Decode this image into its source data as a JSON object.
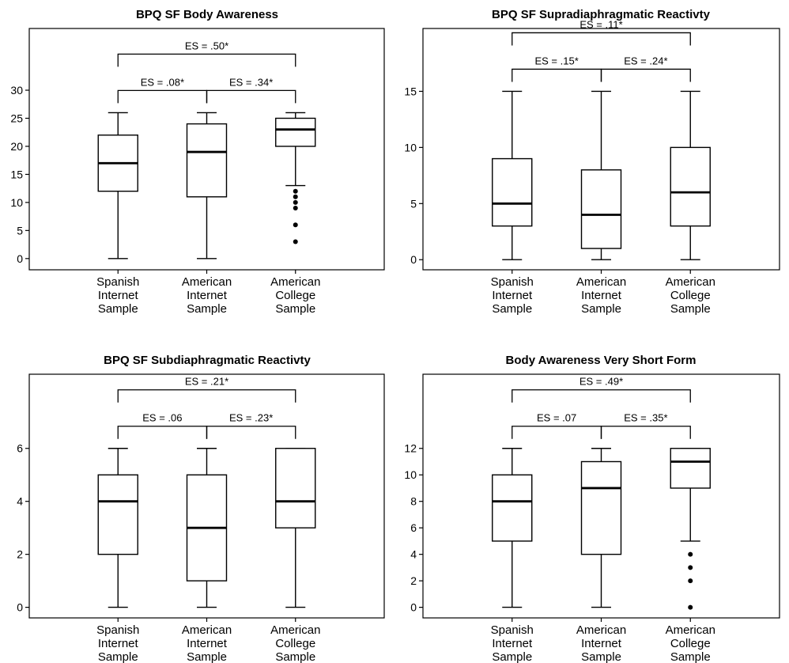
{
  "chart_data": [
    {
      "type": "boxplot",
      "title": "BPQ SF Body Awareness",
      "categories": [
        "Spanish\nInternet\nSample",
        "American\nInternet\nSample",
        "American\nCollege\nSample"
      ],
      "yticks": [
        0,
        5,
        10,
        15,
        20,
        25,
        30
      ],
      "ylim": [
        -2,
        41
      ],
      "boxes": [
        {
          "min": 0,
          "q1": 12,
          "median": 17,
          "q3": 22,
          "max": 26,
          "outliers": []
        },
        {
          "min": 0,
          "q1": 11,
          "median": 19,
          "q3": 24,
          "max": 26,
          "outliers": []
        },
        {
          "min": 13,
          "q1": 20,
          "median": 23,
          "q3": 25,
          "max": 26,
          "outliers": [
            3,
            6,
            9,
            10,
            11,
            12
          ]
        }
      ],
      "brackets": [
        {
          "from": 0,
          "to": 1,
          "level": 1,
          "label": "ES = .08*"
        },
        {
          "from": 1,
          "to": 2,
          "level": 1,
          "label": "ES = .34*"
        },
        {
          "from": 0,
          "to": 2,
          "level": 2,
          "label": "ES = .50*"
        }
      ]
    },
    {
      "type": "boxplot",
      "title": "BPQ SF Supradiaphragmatic Reactivty",
      "categories": [
        "Spanish\nInternet\nSample",
        "American\nInternet\nSample",
        "American\nCollege\nSample"
      ],
      "yticks": [
        0,
        5,
        10,
        15
      ],
      "ylim": [
        -0.9,
        20.6
      ],
      "boxes": [
        {
          "min": 0,
          "q1": 3,
          "median": 5,
          "q3": 9,
          "max": 15,
          "outliers": []
        },
        {
          "min": 0,
          "q1": 1,
          "median": 4,
          "q3": 8,
          "max": 15,
          "outliers": []
        },
        {
          "min": 0,
          "q1": 3,
          "median": 6,
          "q3": 10,
          "max": 15,
          "outliers": []
        }
      ],
      "brackets": [
        {
          "from": 0,
          "to": 1,
          "level": 1,
          "label": "ES = .15*"
        },
        {
          "from": 1,
          "to": 2,
          "level": 1,
          "label": "ES = .24*"
        },
        {
          "from": 0,
          "to": 2,
          "level": 2,
          "label": "ES = .11*"
        }
      ]
    },
    {
      "type": "boxplot",
      "title": "BPQ SF Subdiaphragmatic Reactivty",
      "categories": [
        "Spanish\nInternet\nSample",
        "American\nInternet\nSample",
        "American\nCollege\nSample"
      ],
      "yticks": [
        0,
        2,
        4,
        6
      ],
      "ylim": [
        -0.4,
        8.8
      ],
      "boxes": [
        {
          "min": 0,
          "q1": 2,
          "median": 4,
          "q3": 5,
          "max": 6,
          "outliers": []
        },
        {
          "min": 0,
          "q1": 1,
          "median": 3,
          "q3": 5,
          "max": 6,
          "outliers": []
        },
        {
          "min": 0,
          "q1": 3,
          "median": 4,
          "q3": 6,
          "max": 6,
          "outliers": []
        }
      ],
      "brackets": [
        {
          "from": 0,
          "to": 1,
          "level": 1,
          "label": "ES = .06"
        },
        {
          "from": 1,
          "to": 2,
          "level": 1,
          "label": "ES = .23*"
        },
        {
          "from": 0,
          "to": 2,
          "level": 2,
          "label": "ES = .21*"
        }
      ]
    },
    {
      "type": "boxplot",
      "title": "Body Awareness Very Short Form",
      "categories": [
        "Spanish\nInternet\nSample",
        "American\nInternet\nSample",
        "American\nCollege\nSample"
      ],
      "yticks": [
        0,
        2,
        4,
        6,
        8,
        10,
        12
      ],
      "ylim": [
        -0.8,
        17.6
      ],
      "boxes": [
        {
          "min": 0,
          "q1": 5,
          "median": 8,
          "q3": 10,
          "max": 12,
          "outliers": []
        },
        {
          "min": 0,
          "q1": 4,
          "median": 9,
          "q3": 11,
          "max": 12,
          "outliers": []
        },
        {
          "min": 5,
          "q1": 9,
          "median": 11,
          "q3": 12,
          "max": 12,
          "outliers": [
            0,
            2,
            3,
            4
          ]
        }
      ],
      "brackets": [
        {
          "from": 0,
          "to": 1,
          "level": 1,
          "label": "ES = .07"
        },
        {
          "from": 1,
          "to": 2,
          "level": 1,
          "label": "ES = .35*"
        },
        {
          "from": 0,
          "to": 2,
          "level": 2,
          "label": "ES = .49*"
        }
      ]
    }
  ]
}
